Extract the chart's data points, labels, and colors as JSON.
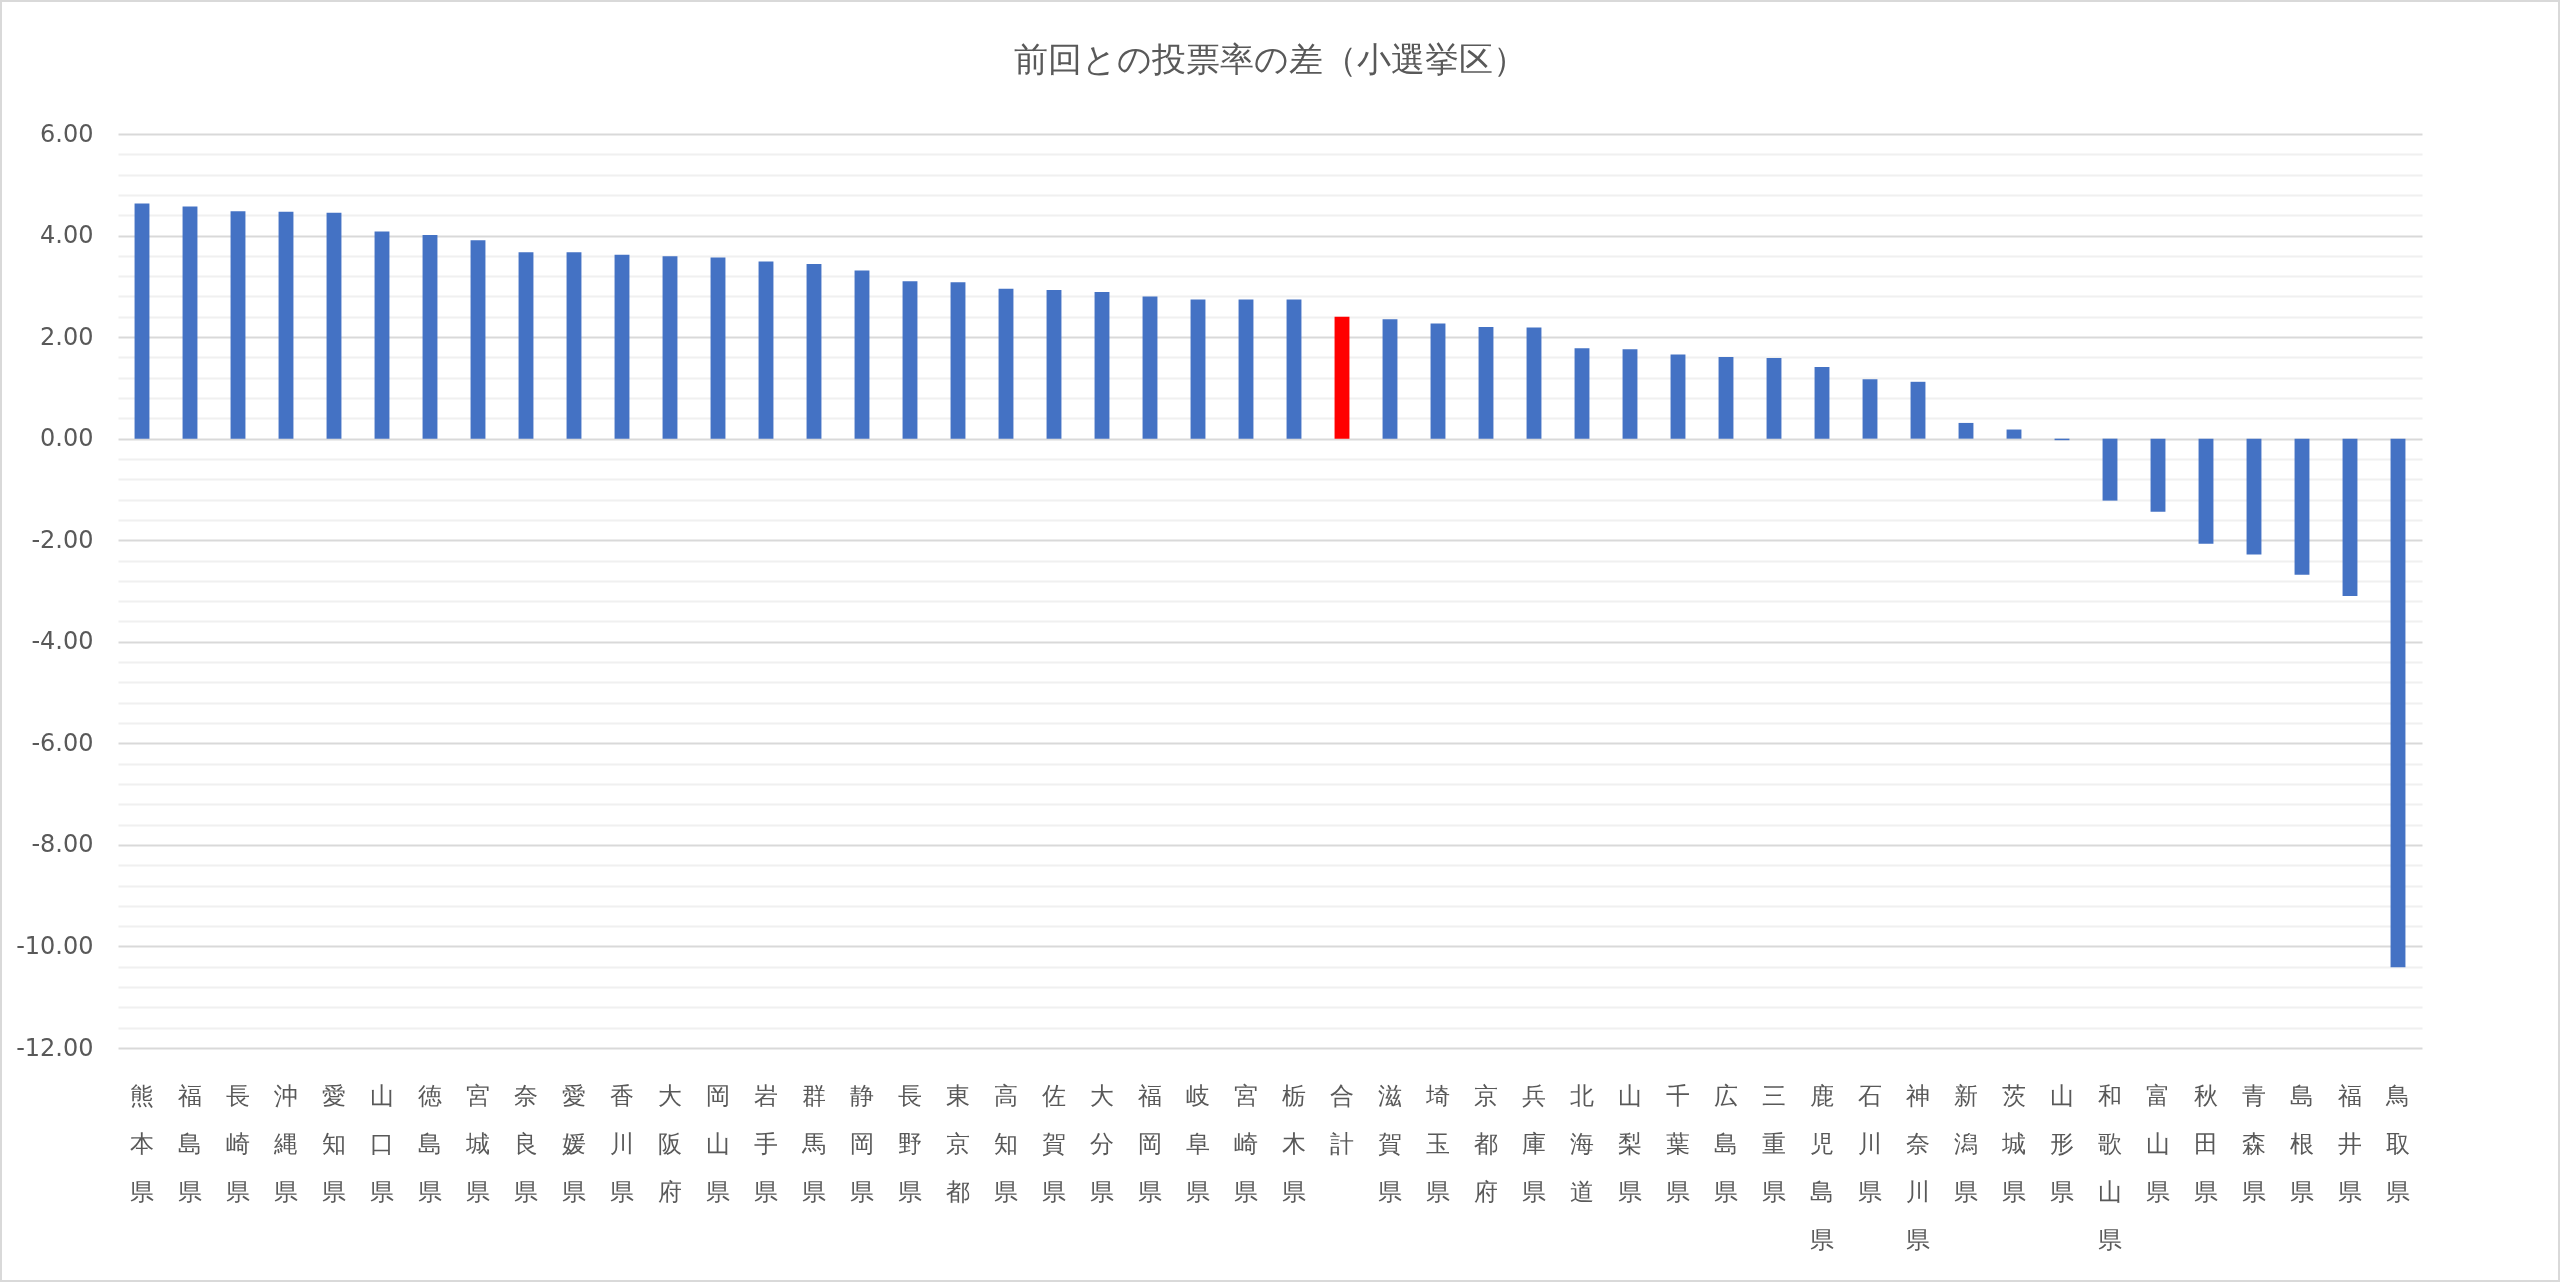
{
  "chart_data": {
    "type": "bar",
    "title": "前回との投票率の差（小選挙区）",
    "categories": [
      "熊本県",
      "福島県",
      "長崎県",
      "沖縄県",
      "愛知県",
      "山口県",
      "徳島県",
      "宮城県",
      "奈良県",
      "愛媛県",
      "香川県",
      "大阪府",
      "岡山県",
      "岩手県",
      "群馬県",
      "静岡県",
      "長野県",
      "東京都",
      "高知県",
      "佐賀県",
      "大分県",
      "福岡県",
      "岐阜県",
      "宮崎県",
      "栃木県",
      "合計",
      "滋賀県",
      "埼玉県",
      "京都府",
      "兵庫県",
      "北海道",
      "山梨県",
      "千葉県",
      "広島県",
      "三重県",
      "鹿児島県",
      "石川県",
      "神奈川県",
      "新潟県",
      "茨城県",
      "山形県",
      "和歌山県",
      "富山県",
      "秋田県",
      "青森県",
      "島根県",
      "福井県",
      "鳥取県"
    ],
    "values": [
      4.63,
      4.57,
      4.48,
      4.47,
      4.45,
      4.08,
      4.01,
      3.91,
      3.67,
      3.67,
      3.62,
      3.59,
      3.57,
      3.49,
      3.44,
      3.31,
      3.1,
      3.08,
      2.95,
      2.93,
      2.89,
      2.8,
      2.74,
      2.74,
      2.74,
      2.4,
      2.35,
      2.27,
      2.2,
      2.19,
      1.78,
      1.76,
      1.66,
      1.61,
      1.59,
      1.41,
      1.17,
      1.12,
      0.31,
      0.18,
      -0.03,
      -1.22,
      -1.44,
      -2.07,
      -2.28,
      -2.68,
      -3.1,
      -10.41
    ],
    "colors": [
      "#4472c4",
      "#4472c4",
      "#4472c4",
      "#4472c4",
      "#4472c4",
      "#4472c4",
      "#4472c4",
      "#4472c4",
      "#4472c4",
      "#4472c4",
      "#4472c4",
      "#4472c4",
      "#4472c4",
      "#4472c4",
      "#4472c4",
      "#4472c4",
      "#4472c4",
      "#4472c4",
      "#4472c4",
      "#4472c4",
      "#4472c4",
      "#4472c4",
      "#4472c4",
      "#4472c4",
      "#4472c4",
      "#ff0000",
      "#4472c4",
      "#4472c4",
      "#4472c4",
      "#4472c4",
      "#4472c4",
      "#4472c4",
      "#4472c4",
      "#4472c4",
      "#4472c4",
      "#4472c4",
      "#4472c4",
      "#4472c4",
      "#4472c4",
      "#4472c4",
      "#4472c4",
      "#4472c4",
      "#4472c4",
      "#4472c4",
      "#4472c4",
      "#4472c4",
      "#4472c4",
      "#4472c4"
    ],
    "ylim": [
      -12,
      6
    ],
    "yticks": [
      {
        "value": -12,
        "label": "-12.00"
      },
      {
        "value": -11.6,
        "label": null
      },
      {
        "value": -11.2,
        "label": null
      },
      {
        "value": -10.8,
        "label": null
      },
      {
        "value": -10.4,
        "label": null
      },
      {
        "value": -10,
        "label": "-10.00"
      },
      {
        "value": -9.6,
        "label": null
      },
      {
        "value": -9.2,
        "label": null
      },
      {
        "value": -8.8,
        "label": null
      },
      {
        "value": -8.4,
        "label": null
      },
      {
        "value": -8,
        "label": "-8.00"
      },
      {
        "value": -7.6,
        "label": null
      },
      {
        "value": -7.2,
        "label": null
      },
      {
        "value": -6.8,
        "label": null
      },
      {
        "value": -6.4,
        "label": null
      },
      {
        "value": -6,
        "label": "-6.00"
      },
      {
        "value": -5.6,
        "label": null
      },
      {
        "value": -5.2,
        "label": null
      },
      {
        "value": -4.8,
        "label": null
      },
      {
        "value": -4.4,
        "label": null
      },
      {
        "value": -4,
        "label": "-4.00"
      },
      {
        "value": -3.6,
        "label": null
      },
      {
        "value": -3.2,
        "label": null
      },
      {
        "value": -2.8,
        "label": null
      },
      {
        "value": -2.4,
        "label": null
      },
      {
        "value": -2,
        "label": "-2.00"
      },
      {
        "value": -1.6,
        "label": null
      },
      {
        "value": -1.2,
        "label": null
      },
      {
        "value": -0.8,
        "label": null
      },
      {
        "value": -0.4,
        "label": null
      },
      {
        "value": 0,
        "label": "0.00"
      },
      {
        "value": 0.4,
        "label": null
      },
      {
        "value": 0.8,
        "label": null
      },
      {
        "value": 1.2,
        "label": null
      },
      {
        "value": 1.6,
        "label": null
      },
      {
        "value": 2,
        "label": "2.00"
      },
      {
        "value": 2.4,
        "label": null
      },
      {
        "value": 2.8,
        "label": null
      },
      {
        "value": 3.2,
        "label": null
      },
      {
        "value": 3.6,
        "label": null
      },
      {
        "value": 4,
        "label": "4.00"
      },
      {
        "value": 4.4,
        "label": null
      },
      {
        "value": 4.8,
        "label": null
      },
      {
        "value": 5.2,
        "label": null
      },
      {
        "value": 5.6,
        "label": null
      },
      {
        "value": 6,
        "label": "6.00"
      }
    ],
    "grid": "y"
  }
}
